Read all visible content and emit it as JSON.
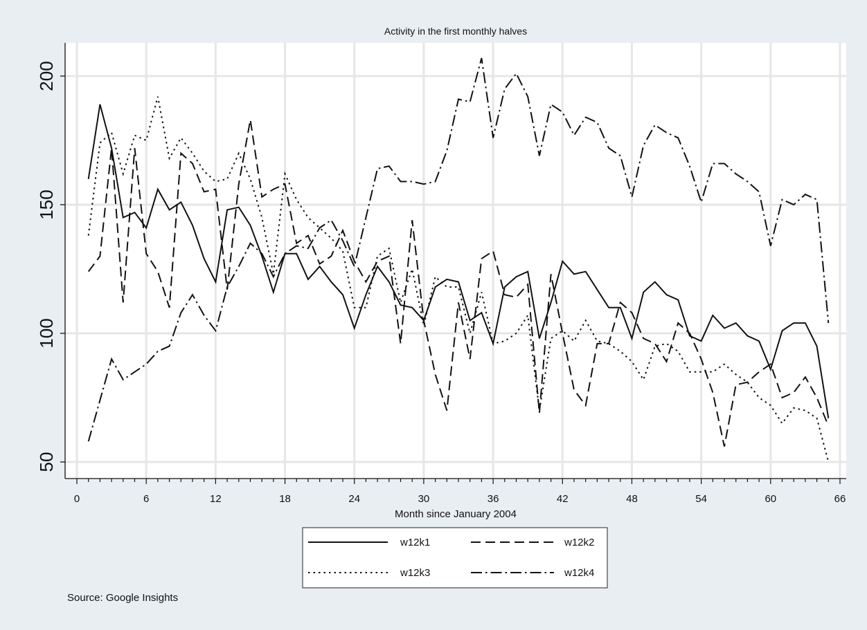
{
  "colors": {
    "background": "#e9eef3",
    "plot_background": "#ffffff",
    "grid": "#e6e6e6",
    "lines": "#111111"
  },
  "chart_data": {
    "type": "line",
    "title": "Activity in the first monthly halves",
    "xlabel": "Month since January 2004",
    "ylabel": "",
    "x_ticks": [
      0,
      6,
      12,
      18,
      24,
      30,
      36,
      42,
      48,
      54,
      60,
      66
    ],
    "y_ticks": [
      50,
      100,
      150,
      200
    ],
    "xlim": [
      0,
      66
    ],
    "ylim": [
      47,
      213
    ],
    "grid": true,
    "legend_position": "bottom",
    "x": [
      1,
      2,
      3,
      4,
      5,
      6,
      7,
      8,
      9,
      10,
      11,
      12,
      13,
      14,
      15,
      16,
      17,
      18,
      19,
      20,
      21,
      22,
      23,
      24,
      25,
      26,
      27,
      28,
      29,
      30,
      31,
      32,
      33,
      34,
      35,
      36,
      37,
      38,
      39,
      40,
      41,
      42,
      43,
      44,
      45,
      46,
      47,
      48,
      49,
      50,
      51,
      52,
      53,
      54,
      55,
      56,
      57,
      58,
      59,
      60,
      61,
      62,
      63,
      64,
      65
    ],
    "series": [
      {
        "name": "w12k1",
        "dash": "solid",
        "values": [
          160,
          189,
          172,
          145,
          147,
          141,
          156,
          148,
          151,
          142,
          129,
          120,
          148,
          149,
          142,
          130,
          116,
          131,
          131,
          121,
          126,
          120,
          115,
          102,
          115,
          126,
          120,
          111,
          110,
          105,
          118,
          121,
          120,
          105,
          108,
          96,
          118,
          122,
          124,
          98,
          112,
          128,
          123,
          124,
          117,
          110,
          110,
          98,
          116,
          120,
          115,
          113,
          99,
          97,
          107,
          102,
          104,
          99,
          97,
          86,
          101,
          104,
          104,
          95,
          67
        ]
      },
      {
        "name": "w12k2",
        "dash": "dashed",
        "values": [
          124,
          130,
          172,
          112,
          172,
          131,
          124,
          110,
          170,
          166,
          155,
          156,
          117,
          158,
          183,
          153,
          156,
          158,
          135,
          138,
          127,
          130,
          140,
          128,
          120,
          128,
          130,
          96,
          144,
          105,
          84,
          70,
          112,
          90,
          129,
          132,
          115,
          114,
          119,
          69,
          123,
          100,
          78,
          72,
          96,
          96,
          112,
          108,
          98,
          96,
          89,
          104,
          100,
          90,
          77,
          56,
          80,
          81,
          85,
          88,
          75,
          77,
          83,
          75,
          64
        ]
      },
      {
        "name": "w12k3",
        "dash": "dotted",
        "values": [
          138,
          174,
          178,
          162,
          177,
          175,
          192,
          168,
          176,
          170,
          163,
          159,
          160,
          170,
          160,
          145,
          123,
          162,
          152,
          145,
          141,
          137,
          132,
          110,
          110,
          130,
          133,
          112,
          125,
          103,
          122,
          118,
          118,
          100,
          116,
          96,
          97,
          100,
          107,
          70,
          98,
          101,
          97,
          105,
          97,
          96,
          93,
          89,
          82,
          95,
          96,
          93,
          85,
          85,
          85,
          88,
          84,
          81,
          75,
          72,
          65,
          71,
          70,
          67,
          50
        ]
      },
      {
        "name": "w12k4",
        "dash": "dashdot",
        "values": [
          58,
          74,
          90,
          82,
          85,
          88,
          93,
          95,
          108,
          115,
          107,
          101,
          118,
          126,
          135,
          131,
          122,
          131,
          134,
          133,
          141,
          144,
          136,
          126,
          145,
          164,
          165,
          159,
          159,
          158,
          159,
          171,
          191,
          190,
          207,
          176,
          195,
          201,
          192,
          169,
          189,
          186,
          177,
          184,
          182,
          172,
          169,
          153,
          173,
          181,
          178,
          176,
          165,
          151,
          166,
          166,
          162,
          159,
          155,
          134,
          152,
          150,
          154,
          152,
          104
        ]
      }
    ],
    "notes": [
      "Source: Google Insights"
    ]
  }
}
